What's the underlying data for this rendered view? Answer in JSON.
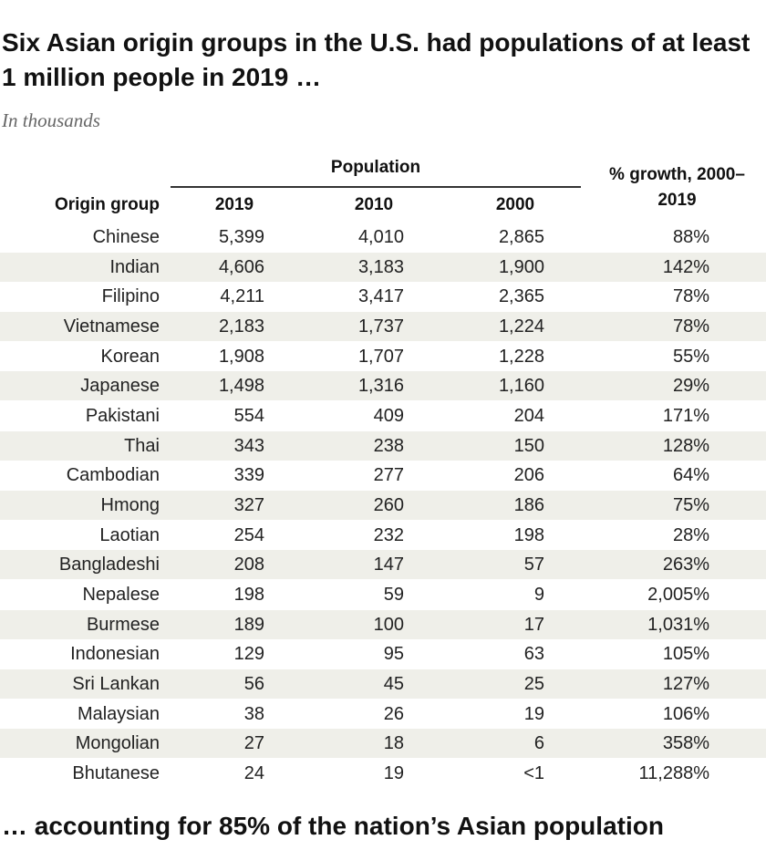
{
  "header": {
    "title": "Six Asian origin groups in the U.S. had populations of at least 1 million people in 2019 …",
    "subtitle": "In thousands"
  },
  "table": {
    "group_header": "Population",
    "columns": [
      "Origin group",
      "2019",
      "2010",
      "2000",
      "% growth, 2000–2019"
    ],
    "rows": [
      [
        "Chinese",
        "5,399",
        "4,010",
        "2,865",
        "88%"
      ],
      [
        "Indian",
        "4,606",
        "3,183",
        "1,900",
        "142%"
      ],
      [
        "Filipino",
        "4,211",
        "3,417",
        "2,365",
        "78%"
      ],
      [
        "Vietnamese",
        "2,183",
        "1,737",
        "1,224",
        "78%"
      ],
      [
        "Korean",
        "1,908",
        "1,707",
        "1,228",
        "55%"
      ],
      [
        "Japanese",
        "1,498",
        "1,316",
        "1,160",
        "29%"
      ],
      [
        "Pakistani",
        "554",
        "409",
        "204",
        "171%"
      ],
      [
        "Thai",
        "343",
        "238",
        "150",
        "128%"
      ],
      [
        "Cambodian",
        "339",
        "277",
        "206",
        "64%"
      ],
      [
        "Hmong",
        "327",
        "260",
        "186",
        "75%"
      ],
      [
        "Laotian",
        "254",
        "232",
        "198",
        "28%"
      ],
      [
        "Bangladeshi",
        "208",
        "147",
        "57",
        "263%"
      ],
      [
        "Nepalese",
        "198",
        "59",
        "9",
        "2,005%"
      ],
      [
        "Burmese",
        "189",
        "100",
        "17",
        "1,031%"
      ],
      [
        "Indonesian",
        "129",
        "95",
        "63",
        "105%"
      ],
      [
        "Sri Lankan",
        "56",
        "45",
        "25",
        "127%"
      ],
      [
        "Malaysian",
        "38",
        "26",
        "19",
        "106%"
      ],
      [
        "Mongolian",
        "27",
        "18",
        "6",
        "358%"
      ],
      [
        "Bhutanese",
        "24",
        "19",
        "<1",
        "11,288%"
      ]
    ]
  },
  "footer": {
    "text": "… accounting for 85% of the nation’s Asian population"
  }
}
